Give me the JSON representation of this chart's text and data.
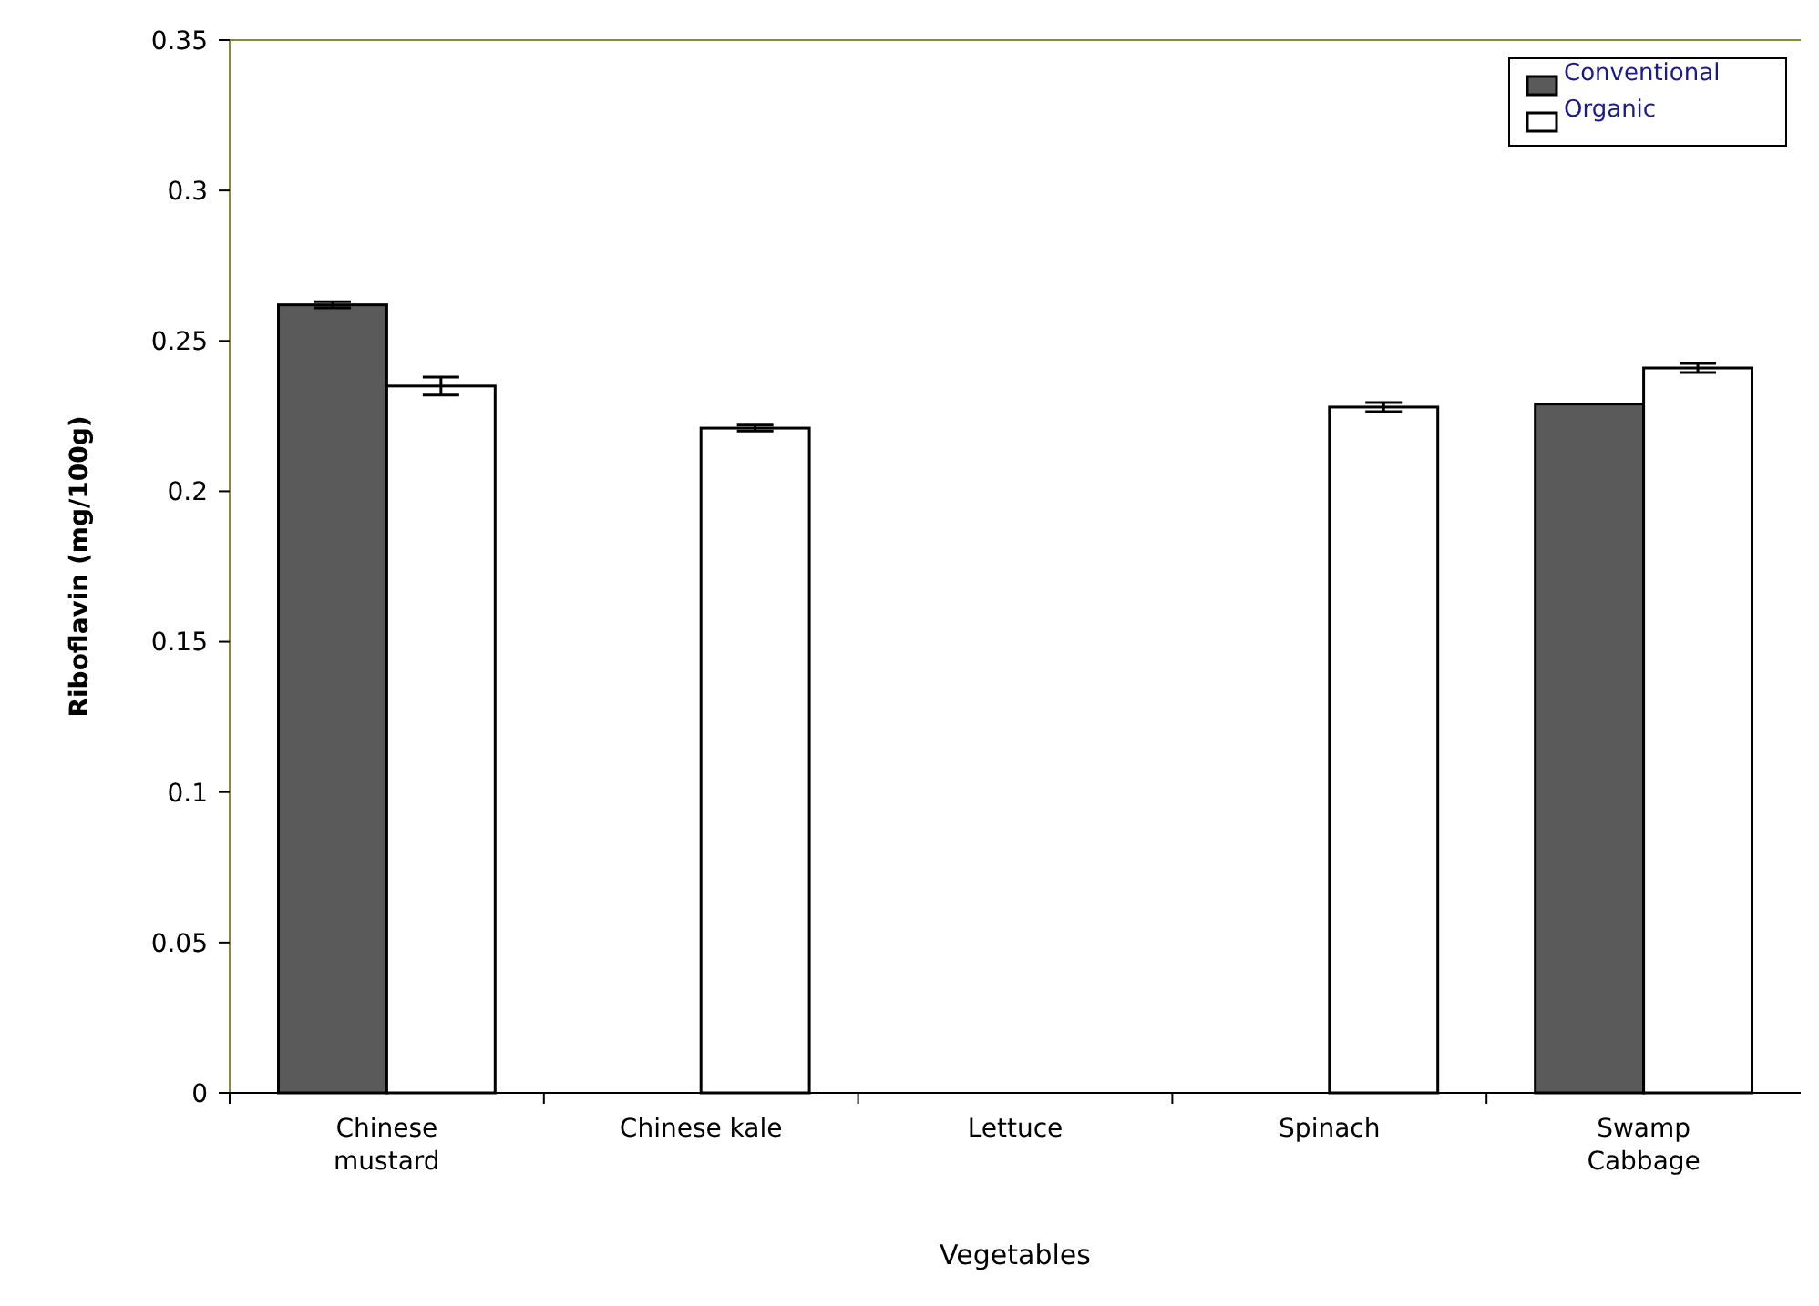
{
  "chart_data": {
    "type": "bar",
    "xlabel": "Vegetables",
    "ylabel": "Riboflavin (mg/100g)",
    "categories": [
      "Chinese mustard",
      "Chinese kale",
      "Lettuce",
      "Spinach",
      "Swamp Cabbage"
    ],
    "series": [
      {
        "name": "Conventional",
        "color": "#5a5a5a",
        "values": [
          0.262,
          null,
          null,
          null,
          0.229
        ],
        "errors": [
          0.001,
          null,
          null,
          null,
          null
        ]
      },
      {
        "name": "Organic",
        "color": "#ffffff",
        "values": [
          0.235,
          0.221,
          null,
          0.228,
          0.241
        ],
        "errors": [
          0.003,
          0.001,
          null,
          0.0015,
          0.0015
        ]
      }
    ],
    "ylim": [
      0,
      0.35
    ],
    "yticks": [
      0,
      0.05,
      0.1,
      0.15,
      0.2,
      0.25,
      0.3,
      0.35
    ],
    "grid": false,
    "legend": "top right"
  }
}
